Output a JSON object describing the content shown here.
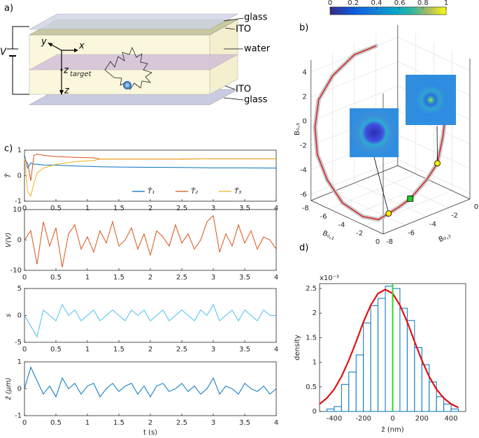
{
  "schematic": {
    "panel": "a)",
    "layers": [
      "glass",
      "ITO",
      "water",
      "ITO",
      "glass"
    ],
    "voltage": "V",
    "axis_y": "y",
    "axis_x": "x",
    "z_target": "z",
    "target_sub": "target",
    "axis_z": "z"
  },
  "chart_data": [
    {
      "type": "line",
      "panel": "c)",
      "ylabel": "T̂",
      "xlim": [
        0,
        4
      ],
      "xticks": [
        0,
        0.5,
        1,
        1.5,
        2,
        2.5,
        3,
        3.5,
        4
      ],
      "ylim": [
        -1,
        1
      ],
      "yticks": [
        -1,
        0,
        1
      ],
      "legend": "lower right",
      "x": [
        0,
        0.05,
        0.1,
        0.15,
        0.2,
        0.3,
        0.5,
        0.8,
        1.1,
        1.2,
        1.5,
        2,
        2.5,
        3,
        3.5,
        4
      ],
      "series": [
        {
          "name": "T̂₁",
          "color": "#0072bd",
          "values": [
            0.8,
            0.3,
            0.5,
            0.45,
            0.45,
            0.42,
            0.42,
            0.38,
            0.36,
            0.35,
            0.34,
            0.33,
            0.32,
            0.31,
            0.31,
            0.3
          ]
        },
        {
          "name": "T̂₂",
          "color": "#d95319",
          "values": [
            0.6,
            0.5,
            -0.2,
            0.8,
            0.85,
            0.8,
            0.75,
            0.72,
            0.7,
            0.65,
            0.65,
            0.65,
            0.65,
            0.66,
            0.66,
            0.66
          ]
        },
        {
          "name": "T̂₃",
          "color": "#edb120",
          "values": [
            0.7,
            -0.6,
            -0.8,
            -0.3,
            0.1,
            0.3,
            0.45,
            0.55,
            0.6,
            0.65,
            0.65,
            0.65,
            0.66,
            0.66,
            0.66,
            0.66
          ]
        }
      ]
    },
    {
      "type": "line",
      "ylabel": "V(V)",
      "xlim": [
        0,
        4
      ],
      "xticks": [
        0,
        0.5,
        1,
        1.5,
        2,
        2.5,
        3,
        3.5,
        4
      ],
      "ylim": [
        -10,
        10
      ],
      "yticks": [
        -10,
        0,
        10
      ],
      "x": [
        0,
        0.1,
        0.2,
        0.3,
        0.4,
        0.5,
        0.6,
        0.7,
        0.8,
        0.9,
        1,
        1.1,
        1.2,
        1.3,
        1.4,
        1.5,
        1.6,
        1.7,
        1.8,
        1.9,
        2,
        2.1,
        2.2,
        2.3,
        2.4,
        2.5,
        2.6,
        2.7,
        2.8,
        2.9,
        3,
        3.1,
        3.2,
        3.3,
        3.4,
        3.5,
        3.6,
        3.7,
        3.8,
        3.9,
        4
      ],
      "series": [
        {
          "color": "#d95319",
          "values": [
            0,
            3,
            -8,
            6,
            -2,
            4,
            -9,
            2,
            5,
            -3,
            1,
            -4,
            3,
            -1,
            6,
            -2,
            0,
            4,
            -3,
            2,
            -5,
            3,
            1,
            -2,
            5,
            -1,
            2,
            -3,
            0,
            6,
            8,
            -4,
            2,
            -2,
            5,
            -1,
            3,
            -3,
            1,
            0,
            -3
          ]
        }
      ]
    },
    {
      "type": "line",
      "ylabel": "s",
      "xlim": [
        0,
        4
      ],
      "xticks": [
        0,
        0.5,
        1,
        1.5,
        2,
        2.5,
        3,
        3.5,
        4
      ],
      "ylim": [
        -5,
        5
      ],
      "yticks": [
        -5,
        0,
        5
      ],
      "x": [
        0,
        0.1,
        0.2,
        0.3,
        0.4,
        0.5,
        0.6,
        0.7,
        0.8,
        0.9,
        1,
        1.1,
        1.2,
        1.3,
        1.4,
        1.5,
        1.6,
        1.7,
        1.8,
        1.9,
        2,
        2.1,
        2.2,
        2.3,
        2.4,
        2.5,
        2.6,
        2.7,
        2.8,
        2.9,
        3,
        3.1,
        3.2,
        3.3,
        3.4,
        3.5,
        3.6,
        3.7,
        3.8,
        3.9,
        4
      ],
      "series": [
        {
          "color": "#4dbeee",
          "values": [
            0,
            -2,
            -4,
            1,
            0,
            -1,
            2,
            0,
            1,
            -1,
            0,
            1,
            -1,
            0,
            1,
            0,
            -1,
            1,
            0,
            1,
            -1,
            0,
            1,
            -1,
            0,
            1,
            0,
            -1,
            1,
            0,
            2,
            -1,
            0,
            1,
            -1,
            1,
            0,
            -1,
            1,
            0,
            0
          ]
        }
      ]
    },
    {
      "type": "line",
      "ylabel": "ẑ (μm)",
      "xlabel": "t (s)",
      "xlim": [
        0,
        4
      ],
      "xticks": [
        0,
        0.5,
        1,
        1.5,
        2,
        2.5,
        3,
        3.5,
        4
      ],
      "ylim": [
        -1,
        1
      ],
      "yticks": [
        -1,
        0,
        1
      ],
      "x": [
        0,
        0.1,
        0.2,
        0.3,
        0.4,
        0.5,
        0.6,
        0.7,
        0.8,
        0.9,
        1,
        1.1,
        1.2,
        1.3,
        1.4,
        1.5,
        1.6,
        1.7,
        1.8,
        1.9,
        2,
        2.1,
        2.2,
        2.3,
        2.4,
        2.5,
        2.6,
        2.7,
        2.8,
        2.9,
        3,
        3.1,
        3.2,
        3.3,
        3.4,
        3.5,
        3.6,
        3.7,
        3.8,
        3.9,
        4
      ],
      "series": [
        {
          "color": "#0072bd",
          "values": [
            0,
            0.8,
            0.3,
            -0.2,
            0.1,
            -0.3,
            0.4,
            0,
            0.2,
            -0.2,
            0.1,
            0.2,
            -0.3,
            0,
            0.2,
            -0.1,
            0.1,
            0.2,
            -0.2,
            0.1,
            -0.3,
            0.1,
            0.2,
            -0.1,
            0,
            0.2,
            -0.1,
            0.1,
            -0.2,
            0,
            0.4,
            -0.2,
            0.1,
            0,
            -0.2,
            0.2,
            0,
            -0.1,
            0.1,
            -0.2,
            0
          ]
        }
      ]
    },
    {
      "type": "scatter3d",
      "panel": "b)",
      "xlabel": "B₀,₁",
      "ylabel": "B₀,₂",
      "zlabel": "B₀,₃",
      "xlim": [
        -8,
        0
      ],
      "xticks": [
        -8,
        -6,
        -4,
        -2,
        0
      ],
      "ylim": [
        -8,
        0
      ],
      "yticks": [
        -8,
        -6,
        -4,
        -2,
        0
      ],
      "zlim": [
        -6.5,
        5
      ],
      "zticks": [
        -6,
        -4,
        -2,
        0,
        2,
        4
      ],
      "colorbar_ticks": [
        0,
        0.2,
        0.4,
        0.6,
        0.8,
        1
      ],
      "clim": [
        0,
        1
      ],
      "series": [
        {
          "color": "#d42a2a",
          "x": [
            -8,
            -8,
            -8,
            -8,
            -7.8,
            -7.3,
            -6.2,
            -4.5,
            -2.5,
            -1,
            0,
            0,
            0,
            0,
            0,
            0,
            0,
            0
          ],
          "y": [
            -2,
            -4,
            -6,
            -7.3,
            -7.8,
            -8,
            -8,
            -8,
            -7.8,
            -7.6,
            -7.5,
            -6.5,
            -5.5,
            -4,
            -3,
            -2.5,
            -2.2,
            -2
          ],
          "z": [
            4,
            4,
            3,
            1.5,
            -0.5,
            -2.5,
            -4.2,
            -5.5,
            -6,
            -5.8,
            -5,
            -4.8,
            -4.5,
            -3.5,
            -2.5,
            -0.5,
            1.5,
            3.5
          ]
        }
      ],
      "markers": [
        {
          "x": 0,
          "y": -7.5,
          "z": -5,
          "color": "#ffee00",
          "shape": "circle"
        },
        {
          "x": 0,
          "y": -5.5,
          "z": -4.5,
          "color": "#22cc22",
          "shape": "square"
        },
        {
          "x": 0,
          "y": -3,
          "z": -2.5,
          "color": "#ffee00",
          "shape": "circle"
        }
      ]
    },
    {
      "type": "histogram",
      "panel": "d)",
      "ylabel": "density",
      "xlabel": "ẑ (nm)",
      "y_exponent": "x10⁻³",
      "xlim": [
        -500,
        500
      ],
      "xticks": [
        -400,
        -200,
        0,
        200,
        400
      ],
      "ylim": [
        0,
        2.6
      ],
      "yticks": [
        0,
        0.5,
        1,
        1.5,
        2,
        2.5
      ],
      "bins": [
        -450,
        -400,
        -350,
        -300,
        -250,
        -200,
        -150,
        -100,
        -50,
        0,
        50,
        100,
        150,
        200,
        250,
        300,
        350,
        400,
        450
      ],
      "counts": [
        0.05,
        0.1,
        0.55,
        0.8,
        1.15,
        1.8,
        2.15,
        2.3,
        2.55,
        2.5,
        2.1,
        1.85,
        1.3,
        0.95,
        0.6,
        0.3,
        0.15,
        0.05
      ],
      "color": "#0072bd",
      "series": [
        {
          "color": "#e01010",
          "x": [
            -500,
            -450,
            -400,
            -350,
            -300,
            -250,
            -200,
            -150,
            -100,
            -50,
            0,
            50,
            100,
            150,
            200,
            250,
            300,
            350,
            400,
            450
          ],
          "values": [
            0.15,
            0.27,
            0.45,
            0.71,
            1.04,
            1.42,
            1.82,
            2.16,
            2.4,
            2.48,
            2.4,
            2.16,
            1.82,
            1.42,
            1.04,
            0.71,
            0.45,
            0.27,
            0.15,
            0.08
          ]
        }
      ],
      "marker_line": {
        "x": 0,
        "color": "#22dd22"
      }
    }
  ]
}
